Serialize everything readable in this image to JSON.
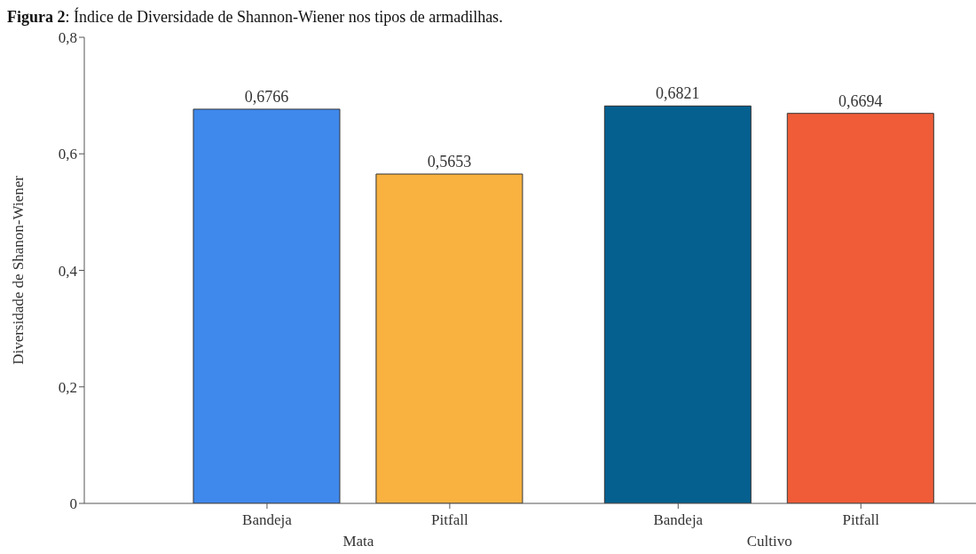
{
  "chart_data": {
    "type": "bar",
    "title": "Figura 2: Índice de Diversidade de Shannon-Wiener nos tipos de armadilhas.",
    "ylabel": "Diversidade de Shanon-Wiener",
    "categories": [
      "Bandeja",
      "Pitfall",
      "Bandeja",
      "Pitfall"
    ],
    "values": [
      0.6766,
      0.5653,
      0.6821,
      0.6694
    ],
    "colors": [
      "#3f88ec",
      "#f9b240",
      "#05608f",
      "#ef5c37"
    ],
    "ylim": [
      0,
      0.8
    ],
    "yticks": [
      0,
      {
        "value": 0.2,
        "label": "0,2"
      },
      {
        "value": 0.4,
        "label": "0,4"
      },
      {
        "value": 0.6,
        "label": "0,6"
      },
      {
        "value": 0.8,
        "label": "0,8"
      }
    ],
    "value_labels": [
      "0,6766",
      "0,5653",
      "0,6821",
      "0,6694"
    ],
    "grid": false,
    "annotations": [
      "Mata",
      "Cultivo"
    ]
  }
}
